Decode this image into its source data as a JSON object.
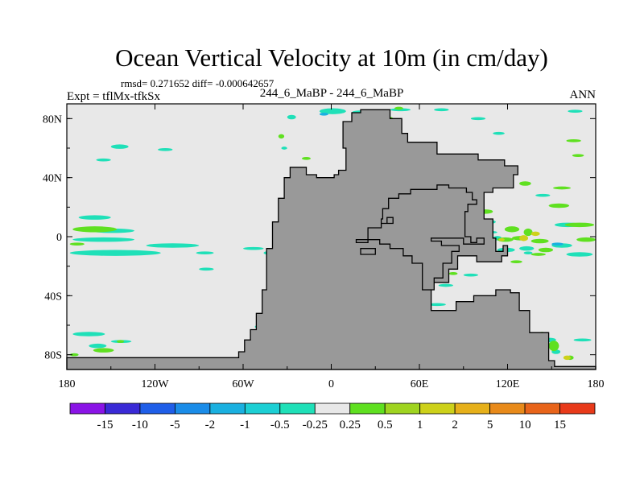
{
  "chart_data": {
    "type": "heatmap",
    "title": "Ocean Vertical Velocity at 10m (in cm/day)",
    "stats_text": "rmsd= 0.271652 diff= -0.000642657",
    "left_label": "Expt = tflMx-tfkSx",
    "center_label": "244_6_MaBP - 244_6_MaBP",
    "right_label": "ANN",
    "x_range": [
      -180,
      180
    ],
    "y_range": [
      -90,
      90
    ],
    "x_ticks": [
      {
        "value": -180,
        "label": "180"
      },
      {
        "value": -120,
        "label": "120W"
      },
      {
        "value": -60,
        "label": "60W"
      },
      {
        "value": 0,
        "label": "0"
      },
      {
        "value": 60,
        "label": "60E"
      },
      {
        "value": 120,
        "label": "120E"
      },
      {
        "value": 180,
        "label": "180"
      }
    ],
    "y_ticks": [
      {
        "value": 80,
        "label": "80N"
      },
      {
        "value": 40,
        "label": "40N"
      },
      {
        "value": 0,
        "label": "0"
      },
      {
        "value": -40,
        "label": "40S"
      },
      {
        "value": -80,
        "label": "80S"
      }
    ],
    "colorbar": {
      "colors": [
        "#8a14e6",
        "#3a2ad6",
        "#1f5ee8",
        "#1a8ce8",
        "#1ab0e0",
        "#1ccfd4",
        "#1fe0b8",
        "#e8e8e8",
        "#5fe020",
        "#9fd420",
        "#cdd11a",
        "#e6b01a",
        "#e88a1a",
        "#e8641a",
        "#e83a1a"
      ],
      "labels": [
        "-15",
        "-10",
        "-5",
        "-2",
        "-1",
        "-0.5",
        "-0.25",
        "0.25",
        "0.5",
        "1",
        "2",
        "5",
        "10",
        "15"
      ]
    },
    "ocean_color": "#e8e8e8",
    "land_color": "#999999",
    "land": [
      [
        [
          -180,
          -90
        ],
        [
          -180,
          -82
        ],
        [
          -63,
          -82
        ],
        [
          -63,
          -78
        ],
        [
          -59,
          -78
        ],
        [
          -59,
          -70
        ],
        [
          -55,
          -70
        ],
        [
          -55,
          -63
        ],
        [
          -51,
          -63
        ],
        [
          -51,
          -52
        ],
        [
          -47,
          -52
        ],
        [
          -47,
          -36
        ],
        [
          -44,
          -36
        ],
        [
          -44,
          -8
        ],
        [
          -40,
          -8
        ],
        [
          -40,
          10
        ],
        [
          -36,
          10
        ],
        [
          -36,
          26
        ],
        [
          -32,
          26
        ],
        [
          -32,
          40
        ],
        [
          -28,
          40
        ],
        [
          -28,
          47
        ],
        [
          -17,
          47
        ],
        [
          -17,
          42
        ],
        [
          -10,
          42
        ],
        [
          -10,
          40
        ],
        [
          2,
          40
        ],
        [
          2,
          42
        ],
        [
          5,
          42
        ],
        [
          5,
          45
        ],
        [
          10,
          45
        ],
        [
          10,
          60
        ],
        [
          8,
          60
        ],
        [
          8,
          78
        ],
        [
          14,
          78
        ],
        [
          14,
          84
        ],
        [
          20,
          84
        ],
        [
          20,
          86
        ],
        [
          40,
          86
        ],
        [
          40,
          80
        ],
        [
          48,
          80
        ],
        [
          48,
          70
        ],
        [
          52,
          70
        ],
        [
          52,
          64
        ],
        [
          72,
          64
        ],
        [
          72,
          56
        ],
        [
          100,
          56
        ],
        [
          100,
          52
        ],
        [
          118,
          52
        ],
        [
          118,
          48
        ],
        [
          127,
          48
        ],
        [
          127,
          42
        ],
        [
          124,
          42
        ],
        [
          124,
          33
        ],
        [
          110,
          33
        ],
        [
          110,
          30
        ],
        [
          104,
          30
        ],
        [
          104,
          12
        ],
        [
          110,
          12
        ],
        [
          110,
          -1
        ],
        [
          112,
          -1
        ],
        [
          112,
          -10
        ],
        [
          117,
          -10
        ],
        [
          117,
          -6
        ],
        [
          120,
          -6
        ],
        [
          120,
          -13
        ],
        [
          116,
          -13
        ],
        [
          116,
          -17
        ],
        [
          99,
          -17
        ],
        [
          99,
          -13
        ],
        [
          86,
          -13
        ],
        [
          86,
          -22
        ],
        [
          80,
          -22
        ],
        [
          80,
          -31
        ],
        [
          68,
          -31
        ],
        [
          68,
          -50
        ],
        [
          85,
          -50
        ],
        [
          85,
          -44
        ],
        [
          97,
          -44
        ],
        [
          97,
          -40
        ],
        [
          112,
          -40
        ],
        [
          112,
          -36
        ],
        [
          122,
          -36
        ],
        [
          122,
          -38
        ],
        [
          128,
          -38
        ],
        [
          128,
          -50
        ],
        [
          135,
          -50
        ],
        [
          135,
          -65
        ],
        [
          148,
          -65
        ],
        [
          148,
          -84
        ],
        [
          152,
          -84
        ],
        [
          152,
          -88
        ],
        [
          180,
          -88
        ],
        [
          180,
          -90
        ]
      ],
      [
        [
          17,
          -2
        ],
        [
          25,
          -2
        ],
        [
          25,
          6
        ],
        [
          34,
          6
        ],
        [
          34,
          12
        ],
        [
          35,
          12
        ],
        [
          35,
          19
        ],
        [
          39,
          19
        ],
        [
          39,
          26
        ],
        [
          46,
          26
        ],
        [
          46,
          29
        ],
        [
          54,
          29
        ],
        [
          54,
          32
        ],
        [
          72,
          32
        ],
        [
          72,
          35
        ],
        [
          80,
          35
        ],
        [
          80,
          33
        ],
        [
          92,
          33
        ],
        [
          92,
          30
        ],
        [
          96,
          30
        ],
        [
          96,
          25
        ],
        [
          99,
          25
        ],
        [
          99,
          22
        ],
        [
          93,
          22
        ],
        [
          93,
          17
        ],
        [
          91,
          17
        ],
        [
          91,
          7
        ],
        [
          91,
          0
        ],
        [
          95,
          0
        ],
        [
          95,
          -4
        ],
        [
          99,
          -4
        ],
        [
          99,
          -1
        ],
        [
          104,
          -1
        ],
        [
          104,
          -5
        ],
        [
          90,
          -5
        ],
        [
          90,
          -1
        ],
        [
          68,
          -1
        ],
        [
          68,
          -3
        ],
        [
          75,
          -3
        ],
        [
          75,
          -6
        ],
        [
          87,
          -6
        ],
        [
          87,
          -10
        ],
        [
          82,
          -10
        ],
        [
          82,
          -18
        ],
        [
          76,
          -18
        ],
        [
          76,
          -28
        ],
        [
          70,
          -28
        ],
        [
          70,
          -36
        ],
        [
          62,
          -36
        ],
        [
          62,
          -18
        ],
        [
          55,
          -18
        ],
        [
          55,
          -13
        ],
        [
          49,
          -13
        ],
        [
          49,
          -8
        ],
        [
          40,
          -8
        ],
        [
          40,
          -5
        ],
        [
          33,
          -5
        ],
        [
          33,
          -2
        ],
        [
          25,
          -2
        ],
        [
          25,
          -4
        ],
        [
          17,
          -4
        ]
      ],
      [
        [
          34,
          9
        ],
        [
          38,
          9
        ],
        [
          38,
          13
        ],
        [
          42,
          13
        ],
        [
          42,
          9
        ],
        [
          34,
          9
        ]
      ],
      [
        [
          20,
          -8
        ],
        [
          30,
          -8
        ],
        [
          30,
          -12
        ],
        [
          20,
          -12
        ]
      ]
    ],
    "positive_patches": [
      [
        -162,
        -77,
        14,
        3
      ],
      [
        -146,
        -71,
        5,
        2
      ],
      [
        -43,
        -66,
        6,
        3
      ],
      [
        -3,
        -67,
        4,
        2
      ],
      [
        1,
        -60,
        4,
        2
      ],
      [
        -52,
        -64,
        4,
        2
      ],
      [
        140,
        -66,
        7,
        3
      ],
      [
        128,
        -80,
        5,
        3
      ],
      [
        148,
        -74,
        7,
        7
      ],
      [
        160,
        -82,
        5,
        3
      ],
      [
        -178,
        -80,
        6,
        2
      ],
      [
        -36,
        68,
        4,
        3
      ],
      [
        34,
        80,
        8,
        3
      ],
      [
        43,
        87,
        6,
        2
      ],
      [
        22,
        85,
        8,
        2
      ],
      [
        62,
        30,
        6,
        3
      ],
      [
        47,
        27,
        6,
        3
      ],
      [
        33,
        6,
        24,
        4
      ],
      [
        21,
        -1,
        12,
        3
      ],
      [
        54,
        1,
        10,
        3
      ],
      [
        67,
        -2,
        6,
        3
      ],
      [
        100,
        17,
        10,
        3
      ],
      [
        80,
        21,
        7,
        2
      ],
      [
        113,
        -2,
        11,
        3
      ],
      [
        123,
        -1,
        11,
        3
      ],
      [
        118,
        5,
        10,
        4
      ],
      [
        131,
        3,
        6,
        5
      ],
      [
        136,
        -3,
        12,
        3
      ],
      [
        141,
        -9,
        10,
        3
      ],
      [
        136,
        -12,
        10,
        2
      ],
      [
        122,
        -17,
        8,
        2
      ],
      [
        159,
        8,
        20,
        3
      ],
      [
        148,
        21,
        14,
        3
      ],
      [
        167,
        -2,
        13,
        3
      ],
      [
        164,
        55,
        8,
        2
      ],
      [
        160,
        65,
        10,
        2
      ],
      [
        -176,
        5,
        30,
        4
      ],
      [
        -178,
        -5,
        10,
        2
      ],
      [
        -20,
        53,
        6,
        2
      ],
      [
        36,
        -22,
        6,
        2
      ],
      [
        80,
        -25,
        6,
        2
      ],
      [
        128,
        36,
        8,
        3
      ],
      [
        151,
        33,
        12,
        2
      ]
    ],
    "strong_positive_patches": [
      [
        128,
        -1,
        6,
        4
      ],
      [
        136,
        2,
        6,
        3
      ],
      [
        28,
        1,
        6,
        2
      ],
      [
        158,
        -82,
        5,
        3
      ],
      [
        114,
        -2,
        4,
        2
      ]
    ],
    "negative_patches": [
      [
        -178,
        -11,
        62,
        4
      ],
      [
        -176,
        -2,
        42,
        3
      ],
      [
        -164,
        4,
        30,
        3
      ],
      [
        -172,
        13,
        22,
        3
      ],
      [
        -150,
        61,
        12,
        3
      ],
      [
        -118,
        59,
        10,
        2
      ],
      [
        -176,
        -66,
        22,
        3
      ],
      [
        -165,
        -74,
        12,
        3
      ],
      [
        -150,
        -71,
        14,
        2
      ],
      [
        -52,
        -61,
        4,
        2
      ],
      [
        -34,
        60,
        4,
        2
      ],
      [
        -30,
        81,
        6,
        3
      ],
      [
        -8,
        85,
        18,
        4
      ],
      [
        14,
        84,
        10,
        3
      ],
      [
        40,
        86,
        14,
        2
      ],
      [
        70,
        86,
        10,
        2
      ],
      [
        95,
        80,
        10,
        2
      ],
      [
        110,
        70,
        8,
        2
      ],
      [
        -126,
        -6,
        36,
        3
      ],
      [
        -92,
        -11,
        12,
        2
      ],
      [
        -60,
        -8,
        14,
        2
      ],
      [
        -46,
        -11,
        4,
        2
      ],
      [
        22,
        9,
        10,
        3
      ],
      [
        23,
        -7,
        12,
        3
      ],
      [
        34,
        -9,
        12,
        2
      ],
      [
        50,
        -15,
        6,
        2
      ],
      [
        55,
        8,
        10,
        3
      ],
      [
        64,
        22,
        6,
        2
      ],
      [
        75,
        10,
        8,
        2
      ],
      [
        100,
        10,
        12,
        3
      ],
      [
        101,
        3,
        12,
        2
      ],
      [
        113,
        -9,
        12,
        3
      ],
      [
        110,
        -1,
        6,
        3
      ],
      [
        128,
        -8,
        10,
        3
      ],
      [
        150,
        -6,
        14,
        3
      ],
      [
        152,
        8,
        18,
        3
      ],
      [
        160,
        -12,
        18,
        3
      ],
      [
        100,
        -15,
        8,
        2
      ],
      [
        73,
        -33,
        10,
        2
      ],
      [
        90,
        -26,
        10,
        2
      ],
      [
        66,
        -46,
        12,
        2
      ],
      [
        120,
        -40,
        8,
        2
      ],
      [
        145,
        -70,
        8,
        3
      ],
      [
        150,
        -78,
        6,
        3
      ],
      [
        -160,
        52,
        10,
        2
      ],
      [
        -90,
        -22,
        10,
        2
      ],
      [
        -178,
        -80,
        6,
        2
      ],
      [
        161,
        85,
        10,
        2
      ],
      [
        139,
        28,
        10,
        2
      ],
      [
        165,
        -70,
        12,
        2
      ],
      [
        131,
        -11,
        6,
        2
      ]
    ],
    "strong_negative_patches": [
      [
        24,
        -6,
        6,
        2
      ],
      [
        100,
        9,
        8,
        2
      ],
      [
        -8,
        83,
        6,
        2
      ],
      [
        150,
        -5,
        8,
        2
      ]
    ]
  }
}
